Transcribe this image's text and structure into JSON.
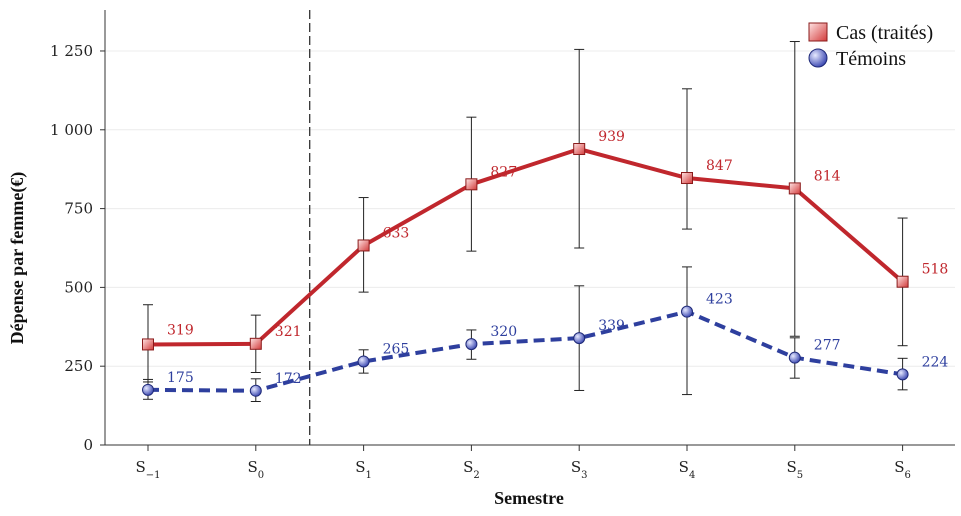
{
  "chart_data": {
    "type": "line",
    "title": "",
    "xlabel": "Semestre",
    "ylabel": "Dépense par femme(€)",
    "categories": [
      "S-1",
      "S0",
      "S1",
      "S2",
      "S3",
      "S4",
      "S5",
      "S6"
    ],
    "category_labels": [
      {
        "base": "S",
        "sub": "-1"
      },
      {
        "base": "S",
        "sub": "0"
      },
      {
        "base": "S",
        "sub": "1"
      },
      {
        "base": "S",
        "sub": "2"
      },
      {
        "base": "S",
        "sub": "3"
      },
      {
        "base": "S",
        "sub": "4"
      },
      {
        "base": "S",
        "sub": "5"
      },
      {
        "base": "S",
        "sub": "6"
      }
    ],
    "ylim": [
      0,
      1380
    ],
    "yticks": [
      0,
      250,
      500,
      750,
      1000,
      1250
    ],
    "ytick_labels": [
      "0",
      "250",
      "500",
      "750",
      "1 000",
      "1 250"
    ],
    "grid": true,
    "legend": "top-right",
    "vertical_reference_line_between": [
      "S0",
      "S1"
    ],
    "series": [
      {
        "name": "Cas (traités)",
        "color": "#c0272d",
        "line_style": "solid",
        "marker": "square",
        "values": [
          319,
          321,
          633,
          827,
          939,
          847,
          814,
          518
        ],
        "labels": [
          "319",
          "321",
          "633",
          "827",
          "939",
          "847",
          "814",
          "518"
        ],
        "error_low": [
          200,
          230,
          485,
          615,
          625,
          685,
          345,
          315
        ],
        "error_high": [
          445,
          412,
          785,
          1040,
          1255,
          1130,
          1280,
          720
        ]
      },
      {
        "name": "Témoins",
        "color": "#2e3f9e",
        "line_style": "dashed",
        "marker": "circle",
        "values": [
          175,
          172,
          265,
          320,
          339,
          423,
          277,
          224
        ],
        "labels": [
          "175",
          "172",
          "265",
          "320",
          "339",
          "423",
          "277",
          "224"
        ],
        "error_low": [
          145,
          138,
          228,
          272,
          173,
          160,
          212,
          175
        ],
        "error_high": [
          208,
          210,
          302,
          365,
          505,
          565,
          340,
          275
        ]
      }
    ]
  }
}
